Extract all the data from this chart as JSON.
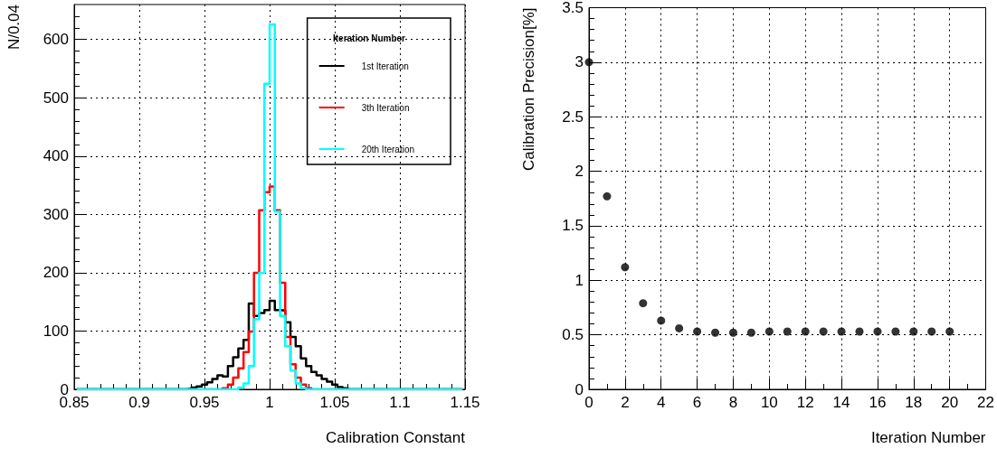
{
  "chart_data": [
    {
      "type": "histogram",
      "xlabel": "Calibration Constant",
      "ylabel": "N/0.04",
      "legend_title": "Iteration Number",
      "legend": "top right",
      "grid": true,
      "xlim": [
        0.85,
        1.15
      ],
      "xticks": [
        0.85,
        0.9,
        0.95,
        1,
        1.05,
        1.1,
        1.15
      ],
      "ylim": [
        0,
        660
      ],
      "yticks": [
        0,
        100,
        200,
        300,
        400,
        500,
        600
      ],
      "bins": [
        0.852,
        0.856,
        0.86,
        0.864,
        0.868,
        0.872,
        0.876,
        0.88,
        0.884,
        0.888,
        0.892,
        0.896,
        0.9,
        0.904,
        0.908,
        0.912,
        0.916,
        0.92,
        0.924,
        0.928,
        0.932,
        0.936,
        0.94,
        0.944,
        0.948,
        0.952,
        0.956,
        0.96,
        0.964,
        0.968,
        0.972,
        0.976,
        0.98,
        0.984,
        0.988,
        0.992,
        0.996,
        1,
        1.004,
        1.008,
        1.012,
        1.016,
        1.02,
        1.024,
        1.028,
        1.032,
        1.036,
        1.04,
        1.044,
        1.048,
        1.052,
        1.056,
        1.06,
        1.064,
        1.068,
        1.072,
        1.076,
        1.08,
        1.084,
        1.088,
        1.092,
        1.096,
        1.1,
        1.104,
        1.108,
        1.112,
        1.116,
        1.12,
        1.124,
        1.128,
        1.132,
        1.136,
        1.14,
        1.144,
        1.148
      ],
      "series": [
        {
          "name": "1st Iteration",
          "color": "#000000",
          "values": [
            0,
            0,
            0,
            0,
            0,
            0,
            0,
            0,
            0,
            0,
            0,
            0,
            0,
            0,
            0,
            0,
            0,
            0,
            0,
            0,
            0,
            1,
            3,
            5,
            8,
            12,
            18,
            24,
            22,
            40,
            55,
            70,
            85,
            147,
            126,
            131,
            136,
            152,
            136,
            135,
            115,
            90,
            74,
            53,
            40,
            30,
            24,
            18,
            13,
            8,
            4,
            2,
            0,
            0,
            0,
            0,
            0,
            0,
            0,
            0,
            0,
            0,
            0,
            0,
            0,
            0,
            0,
            0,
            0,
            0,
            0,
            0,
            0,
            0
          ]
        },
        {
          "name": "3th Iteration",
          "color": "#ff0000",
          "values": [
            0,
            0,
            0,
            0,
            0,
            0,
            0,
            0,
            0,
            0,
            0,
            0,
            0,
            0,
            0,
            0,
            0,
            0,
            0,
            0,
            0,
            0,
            0,
            0,
            0,
            0,
            0,
            0,
            2,
            8,
            20,
            36,
            64,
            99,
            200,
            307,
            338,
            348,
            307,
            183,
            90,
            43,
            20,
            8,
            2,
            0,
            0,
            0,
            0,
            0,
            0,
            0,
            0,
            0,
            0,
            0,
            0,
            0,
            0,
            0,
            0,
            0,
            0,
            0,
            0,
            0,
            0,
            0,
            0,
            0,
            0,
            0,
            0,
            0
          ]
        },
        {
          "name": "20th Iteration",
          "color": "#00ffff",
          "values": [
            0,
            0,
            0,
            0,
            0,
            0,
            0,
            0,
            0,
            0,
            0,
            0,
            0,
            0,
            0,
            0,
            0,
            0,
            0,
            0,
            0,
            0,
            0,
            0,
            0,
            0,
            0,
            0,
            0,
            0,
            0,
            3,
            10,
            40,
            120,
            200,
            524,
            626,
            305,
            126,
            74,
            32,
            10,
            2,
            0,
            0,
            0,
            0,
            0,
            0,
            0,
            0,
            0,
            0,
            0,
            0,
            0,
            0,
            0,
            0,
            0,
            0,
            0,
            0,
            0,
            0,
            0,
            0,
            0,
            0,
            0,
            0,
            0,
            0
          ]
        }
      ]
    },
    {
      "type": "scatter",
      "xlabel": "Iteration Number",
      "ylabel": "Calibration Precision[%]",
      "grid": true,
      "marker": "circle",
      "color": "#000000",
      "xlim": [
        0,
        22
      ],
      "xticks": [
        0,
        2,
        4,
        6,
        8,
        10,
        12,
        14,
        16,
        18,
        20,
        22
      ],
      "ylim": [
        0,
        3.5
      ],
      "yticks": [
        0,
        0.5,
        1,
        1.5,
        2,
        2.5,
        3,
        3.5
      ],
      "x": [
        0,
        1,
        2,
        3,
        4,
        5,
        6,
        7,
        8,
        9,
        10,
        11,
        12,
        13,
        14,
        15,
        16,
        17,
        18,
        19,
        20
      ],
      "values": [
        3.0,
        1.77,
        1.12,
        0.79,
        0.63,
        0.56,
        0.53,
        0.52,
        0.52,
        0.52,
        0.53,
        0.53,
        0.53,
        0.53,
        0.53,
        0.53,
        0.53,
        0.53,
        0.53,
        0.53,
        0.53
      ]
    }
  ]
}
